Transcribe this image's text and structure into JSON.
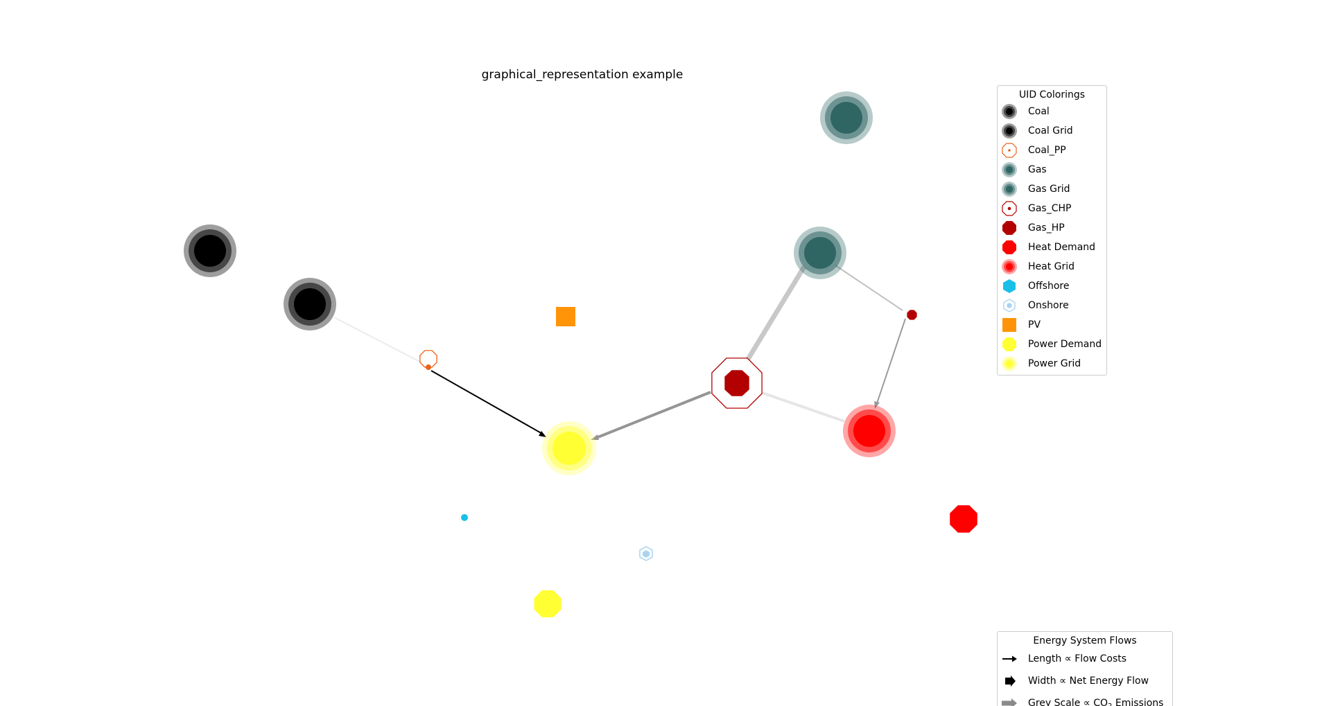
{
  "title": "graphical_representation example",
  "legend_uid": {
    "title": "UID Colorings",
    "items": [
      {
        "label": "Coal",
        "icon": "coal-icon"
      },
      {
        "label": "Coal Grid",
        "icon": "coal-grid-icon"
      },
      {
        "label": "Coal_PP",
        "icon": "coal-pp-icon"
      },
      {
        "label": "Gas",
        "icon": "gas-icon"
      },
      {
        "label": "Gas Grid",
        "icon": "gas-grid-icon"
      },
      {
        "label": "Gas_CHP",
        "icon": "gas-chp-icon"
      },
      {
        "label": "Gas_HP",
        "icon": "gas-hp-icon"
      },
      {
        "label": "Heat Demand",
        "icon": "heat-demand-icon"
      },
      {
        "label": "Heat Grid",
        "icon": "heat-grid-icon"
      },
      {
        "label": "Offshore",
        "icon": "offshore-icon"
      },
      {
        "label": "Onshore",
        "icon": "onshore-icon"
      },
      {
        "label": "PV",
        "icon": "pv-icon"
      },
      {
        "label": "Power Demand",
        "icon": "power-demand-icon"
      },
      {
        "label": "Power Grid",
        "icon": "power-grid-icon"
      }
    ]
  },
  "legend_flows": {
    "title": "Energy System Flows",
    "items": [
      {
        "label_a": "Length",
        "sym": "∝",
        "label_b": "Flow Costs",
        "icon": "arrow-length-icon"
      },
      {
        "label_a": "Width",
        "sym": "∝",
        "label_b": "Net Energy Flow",
        "icon": "arrow-width-icon"
      },
      {
        "label_a": "Grey Scale",
        "sym": "∝",
        "label_b": "CO",
        "sub": "2",
        "label_c": "Emissions",
        "icon": "arrow-grey-icon"
      }
    ]
  },
  "colors": {
    "coal": "#000000",
    "coal_pp": "#e8641a",
    "gas": "#2f6664",
    "gas_chp": "#b30000",
    "heat": "#ff0000",
    "offshore": "#18c0e8",
    "onshore": "#a8d4f0",
    "pv": "#ff9408",
    "power": "#ffff33"
  }
}
